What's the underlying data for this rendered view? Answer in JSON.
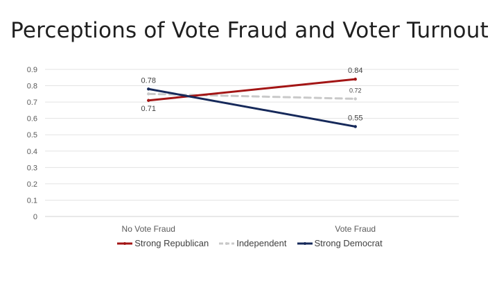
{
  "title": "Perceptions of Vote Fraud and Voter Turnout",
  "chart_data": {
    "type": "line",
    "title": "Perceptions of Vote Fraud and Voter Turnout",
    "categories": [
      "No Vote Fraud",
      "Vote Fraud"
    ],
    "ylim": [
      0,
      0.9
    ],
    "yticks": [
      "0",
      "0.1",
      "0.2",
      "0.3",
      "0.4",
      "0.5",
      "0.6",
      "0.7",
      "0.8",
      "0.9"
    ],
    "ytick_values": [
      0,
      0.1,
      0.2,
      0.3,
      0.4,
      0.5,
      0.6,
      0.7,
      0.8,
      0.9
    ],
    "grid": true,
    "legend_position": "bottom",
    "series": [
      {
        "name": "Strong Republican",
        "values": [
          0.71,
          0.84
        ],
        "labels": [
          "0.71",
          "0.84"
        ],
        "color": "#a31515",
        "dashed": false
      },
      {
        "name": "Independent",
        "values": [
          0.75,
          0.72
        ],
        "labels": [
          "",
          "0.72"
        ],
        "color": "#c9c9c9",
        "dashed": true
      },
      {
        "name": "Strong Democrat",
        "values": [
          0.78,
          0.55
        ],
        "labels": [
          "0.78",
          "0.55"
        ],
        "color": "#16295a",
        "dashed": false
      }
    ]
  }
}
